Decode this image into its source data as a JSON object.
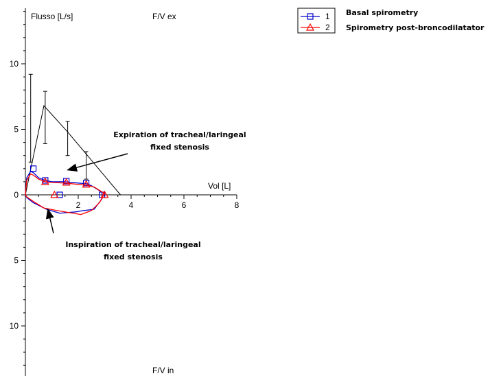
{
  "chart_data": {
    "type": "line",
    "title_top": "F/V ex",
    "title_bottom": "F/V in",
    "ylabel": "Flusso [L/s]",
    "xlabel": "Vol [L]",
    "xlim": [
      0,
      8
    ],
    "ylim": [
      -13,
      14
    ],
    "x_ticks": [
      0,
      2,
      4,
      6,
      8
    ],
    "x_tick_labels": [
      "0",
      "2",
      "4",
      "6",
      "8"
    ],
    "y_ticks": [
      -10,
      -5,
      0,
      5,
      10
    ],
    "y_tick_labels": [
      "10",
      "5",
      "0",
      "5",
      "10"
    ],
    "legend": {
      "position": "top-right",
      "entries": [
        {
          "number": "1",
          "label": "Basal spirometry",
          "color": "#0000cc",
          "marker": "square"
        },
        {
          "number": "2",
          "label": "Spirometry post-broncodilatator",
          "color": "#ff0000",
          "marker": "triangle"
        }
      ]
    },
    "predicted": {
      "color": "#000000",
      "line": [
        [
          0,
          0
        ],
        [
          0.7,
          6.8
        ],
        [
          1.6,
          4.8
        ],
        [
          3.6,
          0
        ]
      ],
      "error_bars": [
        {
          "x": 0.2,
          "low": 2.5,
          "high": 9.2
        },
        {
          "x": 0.75,
          "low": 3.9,
          "high": 7.9
        },
        {
          "x": 1.6,
          "low": 3.0,
          "high": 5.6
        },
        {
          "x": 2.3,
          "low": 1.2,
          "high": 3.3
        }
      ]
    },
    "series": [
      {
        "name": "Basal spirometry",
        "color": "#0000cc",
        "marker": "square",
        "x": [
          0,
          0.05,
          0.2,
          0.3,
          0.5,
          0.75,
          1.0,
          1.5,
          2.0,
          2.3,
          2.5,
          2.9,
          2.9,
          2.6,
          2.2,
          1.9,
          1.3,
          0.8,
          0.3,
          0.05,
          0
        ],
        "y": [
          0,
          1.3,
          1.8,
          1.7,
          1.3,
          1.1,
          1.0,
          1.0,
          0.9,
          0.85,
          0.7,
          0.2,
          -0.3,
          -1.1,
          -1.2,
          -1.3,
          -1.4,
          -1.1,
          -0.6,
          -0.2,
          0
        ],
        "markers": [
          [
            0.3,
            2.0
          ],
          [
            0.75,
            1.1
          ],
          [
            1.55,
            1.05
          ],
          [
            2.3,
            0.9
          ],
          [
            2.9,
            0.0
          ],
          [
            1.3,
            0.0
          ]
        ]
      },
      {
        "name": "Spirometry post-broncodilatator",
        "color": "#ff0000",
        "marker": "triangle",
        "x": [
          0,
          0.05,
          0.2,
          0.3,
          0.5,
          0.75,
          1.0,
          1.5,
          2.0,
          2.3,
          2.6,
          3.0,
          2.8,
          2.5,
          2.1,
          1.8,
          1.2,
          0.7,
          0.3,
          0.05,
          0
        ],
        "y": [
          0,
          1.1,
          1.6,
          1.5,
          1.2,
          1.0,
          0.95,
          0.9,
          0.8,
          0.75,
          0.6,
          0.1,
          -0.6,
          -1.2,
          -1.5,
          -1.4,
          -1.2,
          -1.0,
          -0.5,
          -0.15,
          0
        ],
        "markers": [
          [
            0.75,
            1.0
          ],
          [
            1.55,
            0.95
          ],
          [
            2.3,
            0.8
          ],
          [
            3.0,
            0.0
          ],
          [
            1.1,
            0.0
          ]
        ]
      }
    ],
    "annotations": [
      {
        "lines": [
          "Expiration of tracheal/laringeal",
          "fixed stenosis"
        ],
        "arrow_to": [
          1.6,
          1.9
        ]
      },
      {
        "lines": [
          "Inspiration of tracheal/laringeal",
          "fixed stenosis"
        ],
        "arrow_to": [
          0.85,
          -1.1
        ]
      }
    ]
  }
}
